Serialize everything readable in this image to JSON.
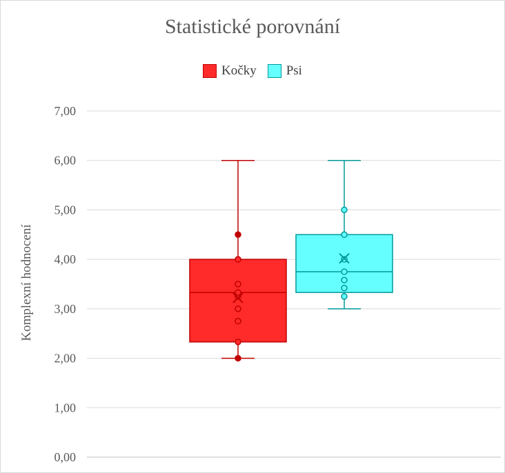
{
  "chart_data": {
    "type": "box",
    "title": "Statistické porovnání",
    "ylabel": "Komplexní hodnocení",
    "xlabel": "",
    "ylim": [
      0,
      7
    ],
    "yticks": [
      "0,00",
      "1,00",
      "2,00",
      "3,00",
      "4,00",
      "5,00",
      "6,00",
      "7,00"
    ],
    "grid": true,
    "legend_position": "top",
    "series": [
      {
        "name": "Kočky",
        "color": "#ff2a2a",
        "edge_color": "#c00000",
        "min": 2.0,
        "q1": 2.33,
        "median": 3.33,
        "q3": 4.0,
        "max": 6.0,
        "mean": 3.22,
        "points": [
          2.0,
          2.33,
          2.75,
          3.0,
          3.25,
          3.33,
          3.5,
          4.0,
          4.5
        ]
      },
      {
        "name": "Psi",
        "color": "#66ffff",
        "edge_color": "#009999",
        "min": 3.0,
        "q1": 3.33,
        "median": 3.75,
        "q3": 4.5,
        "max": 6.0,
        "mean": 4.02,
        "points": [
          3.25,
          3.42,
          3.58,
          3.75,
          4.0,
          4.5,
          5.0
        ]
      }
    ]
  }
}
